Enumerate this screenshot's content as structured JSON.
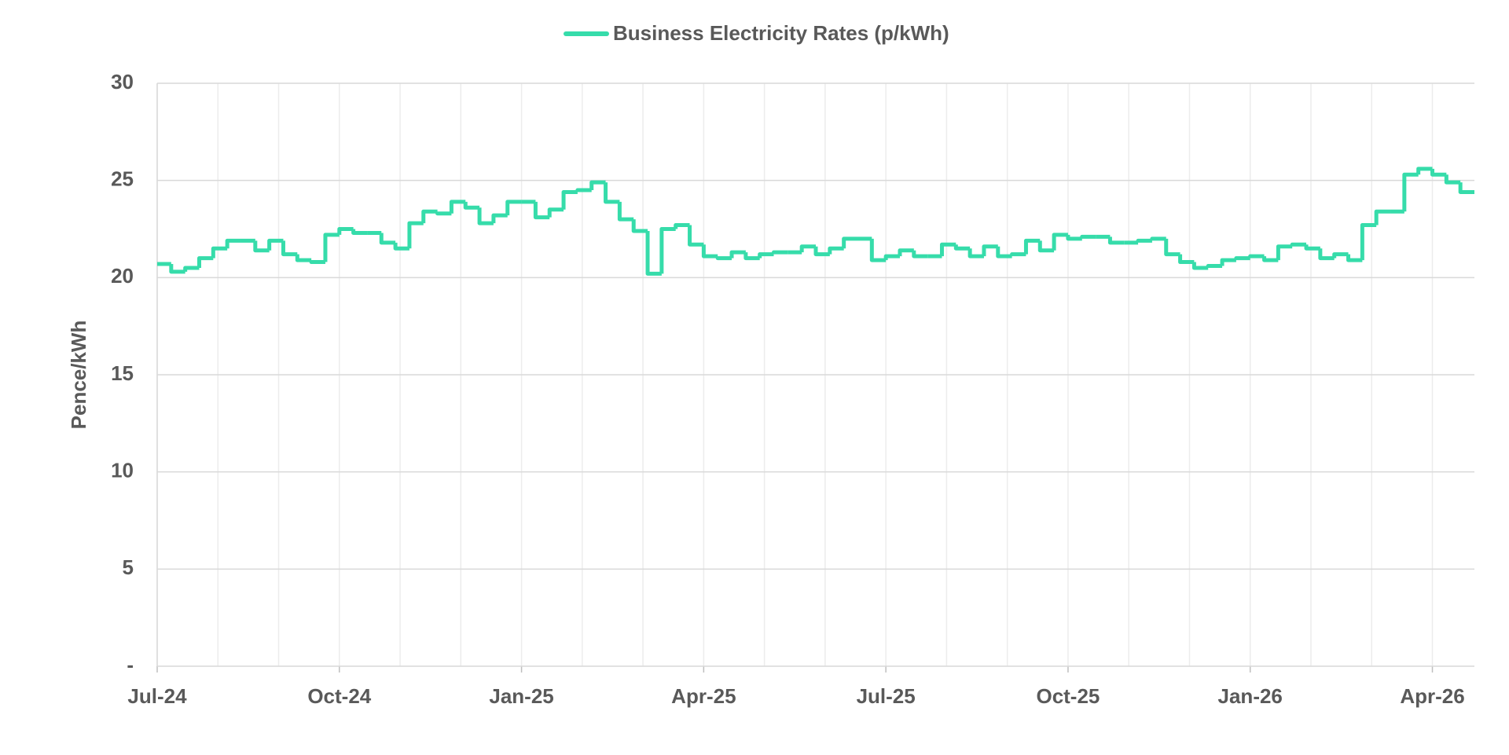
{
  "chart_data": {
    "type": "step-line",
    "legend_position": "top",
    "y_label": "Pence/kWh",
    "categories": [
      "Jul-24",
      null,
      null,
      null,
      null,
      null,
      null,
      null,
      null,
      null,
      null,
      null,
      null,
      "Oct-24",
      null,
      null,
      null,
      null,
      null,
      null,
      null,
      null,
      null,
      null,
      null,
      null,
      "Jan-25",
      null,
      null,
      null,
      null,
      null,
      null,
      null,
      null,
      null,
      null,
      null,
      null,
      "Apr-25",
      null,
      null,
      null,
      null,
      null,
      null,
      null,
      null,
      null,
      null,
      null,
      null,
      "Jul-25",
      null,
      null,
      null,
      null,
      null,
      null,
      null,
      null,
      null,
      null,
      null,
      null,
      "Oct-25",
      null,
      null,
      null,
      null,
      null,
      null,
      null,
      null,
      null,
      null,
      null,
      null,
      "Jan-26",
      null,
      null,
      null,
      null,
      null,
      null,
      null,
      null,
      null,
      null,
      null,
      null,
      "Apr-26",
      null,
      null
    ],
    "series": [
      {
        "name": "Business Electricity Rates (p/kWh)",
        "color": "#36dcaa",
        "values": [
          20.7,
          20.3,
          20.5,
          21.0,
          21.5,
          21.9,
          21.9,
          21.4,
          21.9,
          21.2,
          20.9,
          20.8,
          22.2,
          22.5,
          22.3,
          22.3,
          21.8,
          21.5,
          22.8,
          23.4,
          23.3,
          23.9,
          23.6,
          22.8,
          23.2,
          23.9,
          23.9,
          23.1,
          23.5,
          24.4,
          24.5,
          24.9,
          23.9,
          23.0,
          22.4,
          20.2,
          22.5,
          22.7,
          21.7,
          21.1,
          21.0,
          21.3,
          21.0,
          21.2,
          21.3,
          21.3,
          21.6,
          21.2,
          21.5,
          22.0,
          22.0,
          20.9,
          21.1,
          21.4,
          21.1,
          21.1,
          21.7,
          21.5,
          21.1,
          21.6,
          21.1,
          21.2,
          21.9,
          21.4,
          22.2,
          22.0,
          22.1,
          22.1,
          21.8,
          21.8,
          21.9,
          22.0,
          21.2,
          20.8,
          20.5,
          20.6,
          20.9,
          21.0,
          21.1,
          20.9,
          21.6,
          21.7,
          21.5,
          21.0,
          21.2,
          20.9,
          22.7,
          23.4,
          23.4,
          25.3,
          25.6,
          25.3,
          24.9,
          24.4
        ]
      }
    ],
    "ylim": [
      0,
      30
    ],
    "yticks": [
      {
        "value": 0,
        "label": "-"
      },
      5,
      10,
      15,
      20,
      25,
      30
    ],
    "grid": true
  }
}
